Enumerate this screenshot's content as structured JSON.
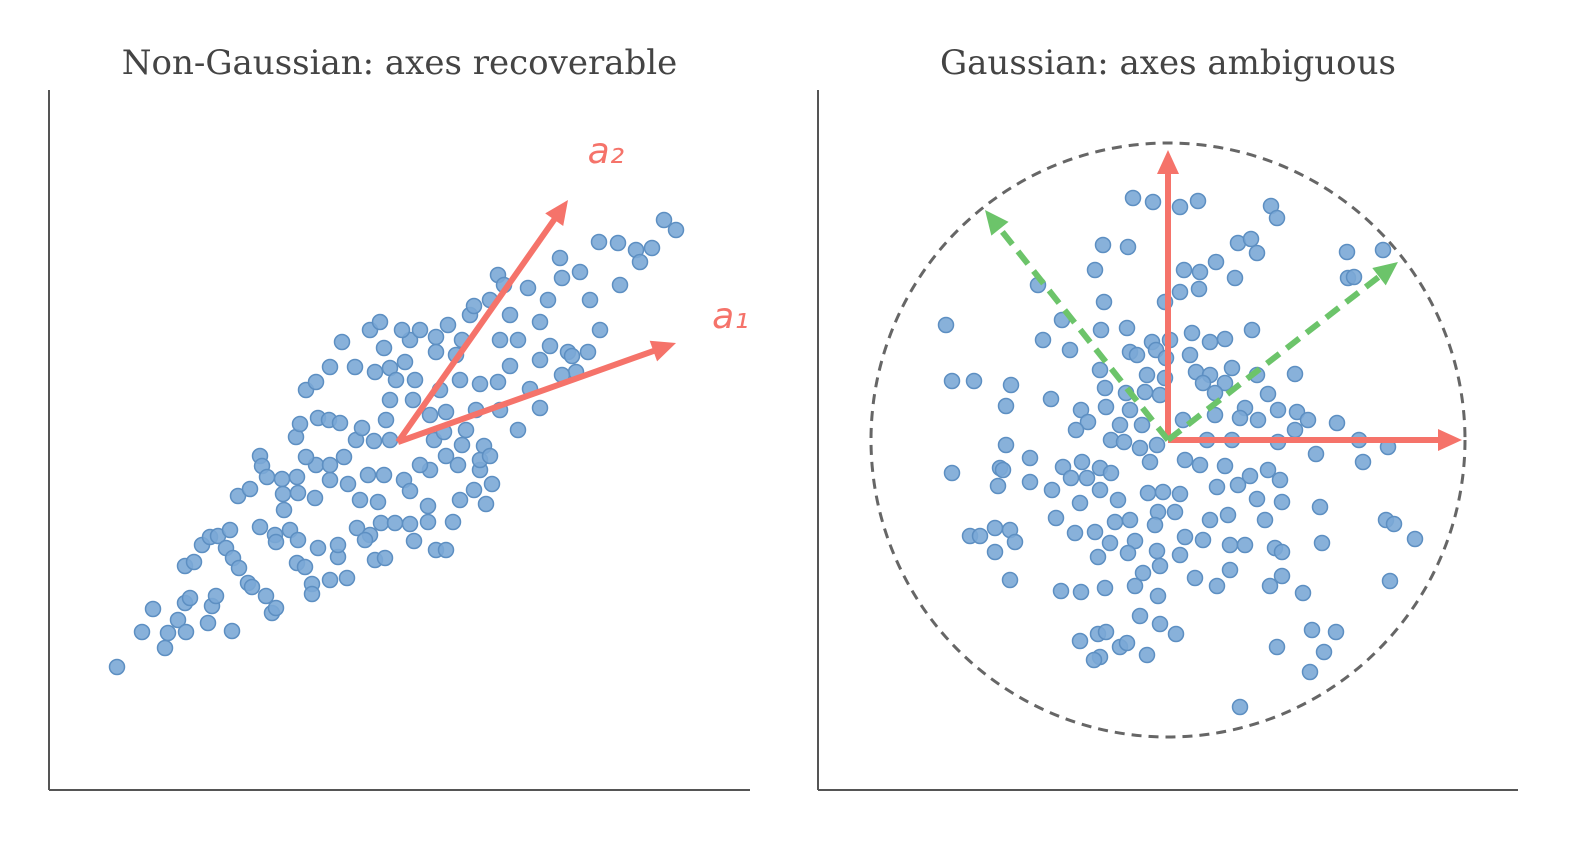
{
  "chart_data": [
    {
      "type": "scatter",
      "title": "Non-Gaussian: axes recoverable",
      "color": "#7ba9d6",
      "edge": "#5d8fc2",
      "xlim": [
        0,
        701
      ],
      "ylim": [
        0,
        700
      ],
      "x": [
        68,
        93,
        104,
        116,
        119,
        129,
        136,
        141,
        137,
        159,
        163,
        167,
        183,
        136,
        145,
        153,
        161,
        169,
        181,
        177,
        184,
        190,
        199,
        203,
        217,
        223,
        227,
        189,
        201,
        211,
        213,
        218,
        233,
        234,
        248,
        249,
        266,
        235,
        211,
        226,
        227,
        241,
        249,
        269,
        248,
        256,
        263,
        263,
        281,
        298,
        289,
        289,
        308,
        321,
        326,
        336,
        316,
        332,
        346,
        361,
        379,
        365,
        387,
        397,
        404,
        411,
        425,
        437,
        443,
        431,
        409,
        381,
        371,
        355,
        361,
        379,
        329,
        311,
        299,
        281,
        267,
        257,
        247,
        251,
        269,
        280,
        291,
        257,
        267,
        281,
        293,
        306,
        326,
        335,
        341,
        347,
        356,
        361,
        371,
        387,
        399,
        413,
        421,
        425,
        441,
        449,
        455,
        461,
        469,
        479,
        491,
        499,
        511,
        513,
        531,
        541,
        550,
        569,
        587,
        603,
        615,
        627,
        591,
        571,
        551,
        527,
        513,
        491,
        481,
        469,
        451,
        427,
        417,
        397,
        381,
        364,
        341,
        325,
        307,
        295,
        281,
        319,
        335,
        385,
        397,
        413,
        435,
        431,
        441,
        449,
        461,
        491,
        501,
        519,
        539,
        523,
        451,
        411,
        391,
        366,
        337,
        313,
        341,
        431,
        395,
        321,
        331,
        353,
        387,
        407
      ],
      "values": [
        123,
        158,
        181,
        142,
        157,
        170,
        187,
        192,
        158,
        167,
        184,
        194,
        159,
        224,
        228,
        245,
        253,
        254,
        260,
        242,
        232,
        222,
        207,
        203,
        194,
        177,
        182,
        294,
        301,
        334,
        324,
        313,
        311,
        296,
        313,
        297,
        292,
        280,
        263,
        255,
        248,
        260,
        250,
        242,
        227,
        223,
        206,
        196,
        210,
        212,
        233,
        245,
        262,
        255,
        230,
        232,
        250,
        267,
        267,
        266,
        268,
        249,
        240,
        240,
        268,
        290,
        300,
        286,
        306,
        320,
        325,
        320,
        325,
        310,
        299,
        284,
        288,
        290,
        306,
        310,
        325,
        333,
        353,
        366,
        372,
        370,
        367,
        400,
        408,
        423,
        448,
        423,
        418,
        442,
        422,
        410,
        428,
        450,
        460,
        453,
        465,
        450,
        475,
        484,
        490,
        515,
        505,
        475,
        450,
        502,
        468,
        490,
        532,
        512,
        518,
        490,
        548,
        547,
        540,
        542,
        570,
        560,
        528,
        505,
        460,
        418,
        415,
        382,
        401,
        360,
        380,
        380,
        360,
        378,
        375,
        390,
        390,
        349,
        350,
        333,
        325,
        315,
        315,
        350,
        334,
        345,
        344,
        330,
        334,
        408,
        424,
        430,
        444,
        438,
        438,
        434,
        450,
        410,
        400,
        410,
        370,
        362,
        350,
        406,
        358,
        460,
        468,
        460,
        438,
        435
      ],
      "arrows": [
        {
          "label": "a₁",
          "from": [
            349,
            348
          ],
          "to": [
            627,
            447
          ],
          "color": "#f5736a",
          "dashed": false
        },
        {
          "label": "a₂",
          "from": [
            349,
            348
          ],
          "to": [
            519,
            590
          ],
          "color": "#f5736a",
          "dashed": false
        }
      ]
    },
    {
      "type": "scatter",
      "title": "Gaussian: axes ambiguous",
      "color": "#7ba9d6",
      "edge": "#5d8fc2",
      "xlim": [
        -350,
        350
      ],
      "ylim": [
        -350,
        350
      ],
      "circle": {
        "radius": 297,
        "color": "#666666"
      },
      "x": [
        -35,
        -15,
        12,
        30,
        103,
        109,
        -65,
        -40,
        70,
        83,
        89,
        179,
        215,
        180,
        186,
        -73,
        16,
        32,
        48,
        67,
        -130,
        -64,
        -3,
        12,
        31,
        -222,
        -106,
        -125,
        -98,
        -67,
        -41,
        -16,
        2,
        24,
        57,
        84,
        42,
        -38,
        -31,
        22,
        -12,
        -2,
        -216,
        -194,
        -157,
        -117,
        -162,
        -68,
        -21,
        -3,
        28,
        42,
        64,
        89,
        127,
        35,
        57,
        -63,
        -42,
        -23,
        -8,
        47,
        100,
        -87,
        -62,
        -38,
        77,
        110,
        129,
        169,
        -80,
        -92,
        -48,
        -26,
        15,
        47,
        72,
        90,
        140,
        -57,
        -44,
        -28,
        -11,
        39,
        64,
        110,
        127,
        191,
        220,
        148,
        195,
        -216,
        -162,
        -168,
        -138,
        -165,
        -170,
        -138,
        -116,
        -105,
        -86,
        -97,
        -81,
        -68,
        -57,
        -18,
        17,
        32,
        57,
        82,
        100,
        112,
        -68,
        -50,
        -20,
        -5,
        12,
        49,
        70,
        89,
        114,
        152,
        -112,
        -88,
        -53,
        -38,
        -10,
        7,
        42,
        60,
        97,
        218,
        226,
        247,
        -198,
        -173,
        -188,
        -158,
        -153,
        -173,
        -93,
        -73,
        -58,
        -33,
        -13,
        17,
        35,
        62,
        77,
        107,
        114,
        154,
        -70,
        -40,
        -11,
        -8,
        12,
        -25,
        27,
        62,
        114,
        102,
        135,
        222,
        -158,
        -107,
        -87,
        -63,
        -33,
        -10,
        49,
        -28,
        -8,
        8,
        -88,
        -70,
        -62,
        -48,
        -41,
        -21,
        -68,
        -74,
        144,
        168,
        109,
        156,
        142,
        72
      ],
      "values": [
        242,
        238,
        233,
        239,
        234,
        222,
        195,
        193,
        197,
        201,
        187,
        188,
        190,
        162,
        163,
        170,
        170,
        168,
        178,
        162,
        155,
        138,
        138,
        148,
        151,
        115,
        120,
        100,
        90,
        110,
        112,
        98,
        100,
        107,
        101,
        110,
        98,
        88,
        85,
        85,
        90,
        82,
        59,
        59,
        55,
        41,
        34,
        70,
        65,
        62,
        68,
        65,
        72,
        65,
        66,
        57,
        57,
        52,
        47,
        48,
        45,
        47,
        46,
        30,
        33,
        30,
        32,
        30,
        28,
        17,
        18,
        10,
        15,
        15,
        20,
        25,
        22,
        20,
        20,
        0,
        -2,
        -8,
        -5,
        0,
        0,
        -2,
        10,
        0,
        -7,
        -14,
        -22,
        -33,
        -5,
        -28,
        -18,
        -30,
        -46,
        -42,
        -50,
        -27,
        -22,
        -38,
        -38,
        -28,
        -33,
        -22,
        -20,
        -25,
        -26,
        -36,
        -30,
        -40,
        -50,
        -60,
        -53,
        -52,
        -54,
        -47,
        -45,
        -59,
        -62,
        -67,
        -78,
        -63,
        -82,
        -80,
        -72,
        -72,
        -80,
        -75,
        -80,
        -80,
        -84,
        -99,
        -96,
        -88,
        -96,
        -90,
        -102,
        -112,
        -93,
        -92,
        -103,
        -101,
        -85,
        -97,
        -100,
        -105,
        -105,
        -108,
        -112,
        -103,
        -117,
        -113,
        -111,
        -126,
        -115,
        -133,
        -138,
        -130,
        -136,
        -146,
        -153,
        -141,
        -140,
        -151,
        -152,
        -148,
        -146,
        -156,
        -146,
        -176,
        -184,
        -194,
        -201,
        -194,
        -192,
        -207,
        -203,
        -215,
        -217,
        -220,
        -190,
        -192,
        -207,
        -212,
        -232,
        -267
      ],
      "arrows": [
        {
          "from": [
            0,
            0
          ],
          "to": [
            294,
            0
          ],
          "color": "#f5736a",
          "dashed": false
        },
        {
          "from": [
            0,
            0
          ],
          "to": [
            0,
            290
          ],
          "color": "#f5736a",
          "dashed": false
        },
        {
          "from": [
            0,
            0
          ],
          "to": [
            -183,
            230
          ],
          "color": "#6cc46a",
          "dashed": true
        },
        {
          "from": [
            0,
            0
          ],
          "to": [
            230,
            178
          ],
          "color": "#6cc46a",
          "dashed": true
        }
      ]
    }
  ]
}
